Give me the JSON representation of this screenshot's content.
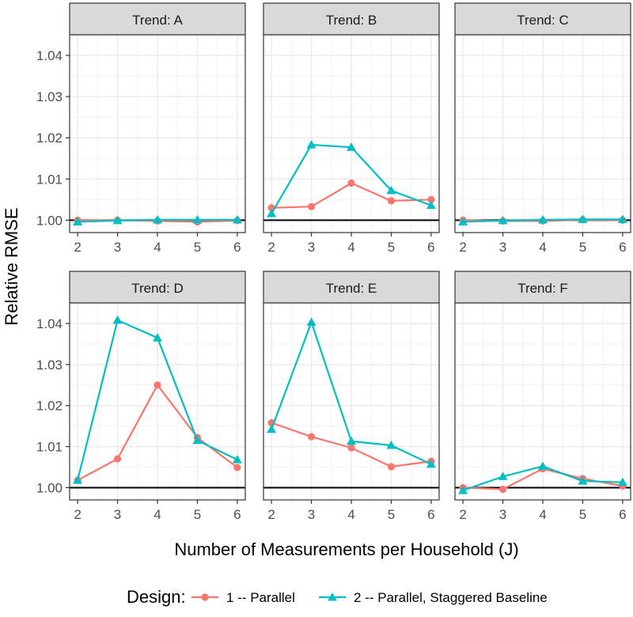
{
  "chart_data": {
    "type": "line",
    "title": "",
    "xlabel": "Number of Measurements per Household (J)",
    "ylabel": "Relative RMSE",
    "x": [
      2,
      3,
      4,
      5,
      6
    ],
    "xticks": [
      "2",
      "3",
      "4",
      "5",
      "6"
    ],
    "ylim": [
      0.997,
      1.045
    ],
    "yticks": [
      "1.00",
      "1.01",
      "1.02",
      "1.03",
      "1.04"
    ],
    "reference_line": 1.0,
    "grid": true,
    "legend_position": "bottom",
    "legend_title": "Design:",
    "series_info": [
      {
        "name": "1 -- Parallel",
        "color": "#F8766D",
        "marker": "circle"
      },
      {
        "name": "2 -- Parallel, Staggered Baseline",
        "color": "#00BFC4",
        "marker": "triangle"
      }
    ],
    "facets": [
      {
        "label": "Trend: A",
        "series": [
          {
            "name": "1 -- Parallel",
            "values": [
              1.0,
              1.0,
              0.9998,
              0.9996,
              0.9999
            ]
          },
          {
            "name": "2 -- Parallel, Staggered Baseline",
            "values": [
              0.9996,
              0.9999,
              1.0001,
              1.0001,
              1.0001
            ]
          }
        ]
      },
      {
        "label": "Trend: B",
        "series": [
          {
            "name": "1 -- Parallel",
            "values": [
              1.003,
              1.0033,
              1.009,
              1.0047,
              1.005
            ]
          },
          {
            "name": "2 -- Parallel, Staggered Baseline",
            "values": [
              1.0016,
              1.0183,
              1.0177,
              1.0072,
              1.0036
            ]
          }
        ]
      },
      {
        "label": "Trend: C",
        "series": [
          {
            "name": "1 -- Parallel",
            "values": [
              1.0,
              0.9998,
              0.9998,
              1.0001,
              1.0
            ]
          },
          {
            "name": "2 -- Parallel, Staggered Baseline",
            "values": [
              0.9996,
              0.9999,
              1.0001,
              1.0002,
              1.0002
            ]
          }
        ]
      },
      {
        "label": "Trend: D",
        "series": [
          {
            "name": "1 -- Parallel",
            "values": [
              1.0018,
              1.007,
              1.025,
              1.0122,
              1.0049
            ]
          },
          {
            "name": "2 -- Parallel, Staggered Baseline",
            "values": [
              1.0018,
              1.0408,
              1.0365,
              1.0115,
              1.0068
            ]
          }
        ]
      },
      {
        "label": "Trend: E",
        "series": [
          {
            "name": "1 -- Parallel",
            "values": [
              1.0158,
              1.0124,
              1.0097,
              1.0051,
              1.0064
            ]
          },
          {
            "name": "2 -- Parallel, Staggered Baseline",
            "values": [
              1.0142,
              1.0403,
              1.0113,
              1.0103,
              1.0057
            ]
          }
        ]
      },
      {
        "label": "Trend: F",
        "series": [
          {
            "name": "1 -- Parallel",
            "values": [
              1.0,
              0.9996,
              1.0046,
              1.0022,
              1.0004
            ]
          },
          {
            "name": "2 -- Parallel, Staggered Baseline",
            "values": [
              0.9993,
              1.0027,
              1.0052,
              1.0016,
              1.0013
            ]
          }
        ]
      }
    ]
  }
}
